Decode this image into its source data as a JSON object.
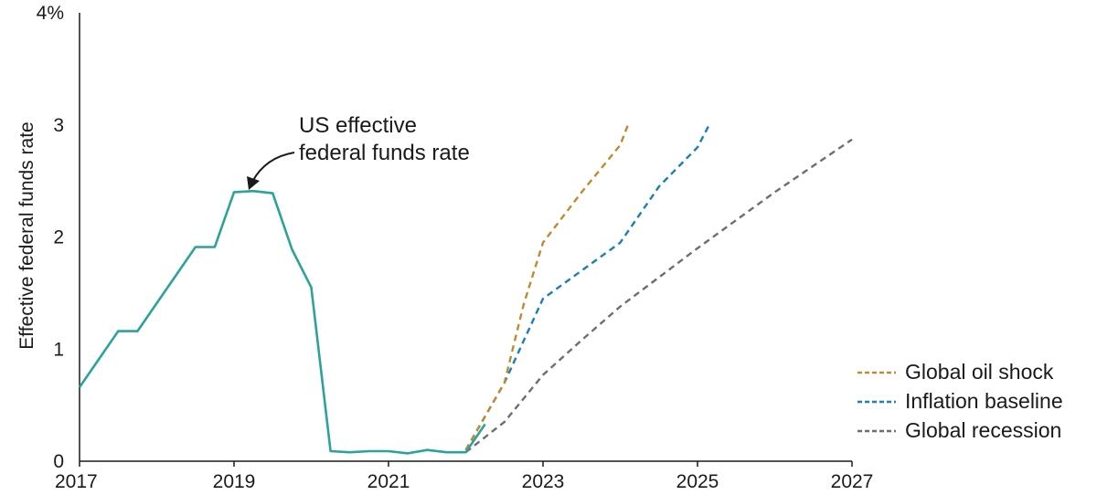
{
  "chart_data": {
    "type": "line",
    "title": "",
    "ylabel": "Effective federal  funds rate",
    "xlabel": "",
    "xlim": [
      2017,
      2027
    ],
    "ylim": [
      0,
      4
    ],
    "x_ticks": [
      2017,
      2019,
      2021,
      2023,
      2025,
      2027
    ],
    "x_tick_labels": [
      "2017",
      "2019",
      "2021",
      "2023",
      "2025",
      "2027"
    ],
    "y_ticks": [
      0,
      1,
      2,
      3,
      4
    ],
    "y_tick_labels": [
      "0",
      "1",
      "2",
      "3",
      "4%"
    ],
    "grid": false,
    "legend_position": "bottom-right",
    "annotation": {
      "lines": [
        "US effective",
        "federal funds rate"
      ],
      "points_to": {
        "x": 2019.25,
        "y": 2.4
      }
    },
    "series": [
      {
        "name": "",
        "style": "solid",
        "color": "#2ba39a",
        "points": [
          [
            2017.0,
            0.66
          ],
          [
            2017.5,
            1.16
          ],
          [
            2017.75,
            1.16
          ],
          [
            2018.5,
            1.91
          ],
          [
            2018.75,
            1.91
          ],
          [
            2019.0,
            2.4
          ],
          [
            2019.25,
            2.41
          ],
          [
            2019.5,
            2.39
          ],
          [
            2019.75,
            1.89
          ],
          [
            2020.0,
            1.55
          ],
          [
            2020.25,
            0.09
          ],
          [
            2020.5,
            0.08
          ],
          [
            2020.75,
            0.09
          ],
          [
            2021.0,
            0.09
          ],
          [
            2021.25,
            0.07
          ],
          [
            2021.5,
            0.1
          ],
          [
            2021.75,
            0.08
          ],
          [
            2022.0,
            0.08
          ],
          [
            2022.25,
            0.33
          ]
        ]
      },
      {
        "name": "Global oil shock",
        "style": "dashed",
        "color": "#c28a2e",
        "points": [
          [
            2022.0,
            0.1
          ],
          [
            2022.5,
            0.7
          ],
          [
            2022.75,
            1.4
          ],
          [
            2023.0,
            1.95
          ],
          [
            2023.5,
            2.4
          ],
          [
            2024.0,
            2.82
          ],
          [
            2024.1,
            3.0
          ]
        ]
      },
      {
        "name": "Inflation baseline",
        "style": "dashed",
        "color": "#1a7fb3",
        "points": [
          [
            2022.0,
            0.1
          ],
          [
            2022.5,
            0.7
          ],
          [
            2023.0,
            1.45
          ],
          [
            2023.5,
            1.7
          ],
          [
            2024.0,
            1.95
          ],
          [
            2024.5,
            2.45
          ],
          [
            2025.0,
            2.8
          ],
          [
            2025.15,
            3.0
          ]
        ]
      },
      {
        "name": "Global recession",
        "style": "dashed",
        "color": "#6e6e6e",
        "points": [
          [
            2022.0,
            0.08
          ],
          [
            2022.5,
            0.35
          ],
          [
            2023.0,
            0.77
          ],
          [
            2023.5,
            1.08
          ],
          [
            2024.0,
            1.38
          ],
          [
            2025.0,
            1.9
          ],
          [
            2026.0,
            2.4
          ],
          [
            2027.0,
            2.87
          ]
        ]
      }
    ]
  }
}
